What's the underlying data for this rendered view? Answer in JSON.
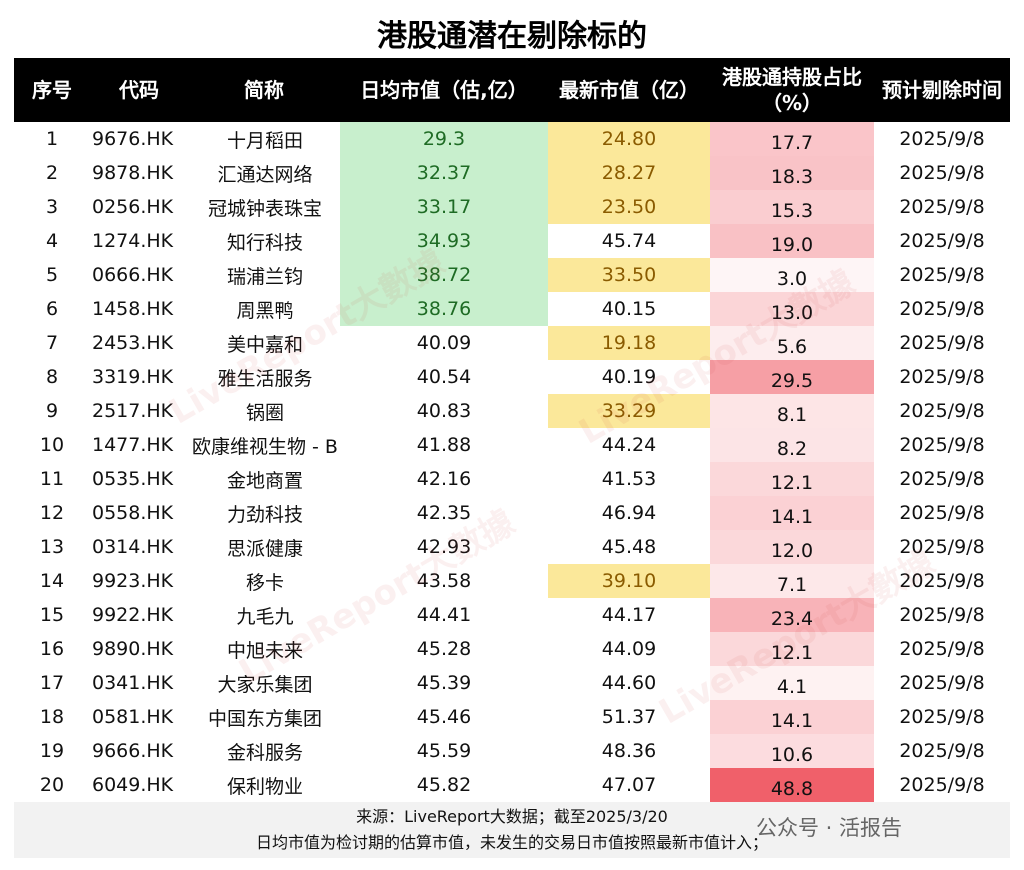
{
  "title": "港股通潜在剔除标的",
  "headers": [
    "序号",
    "代码",
    "简称",
    "日均市值（估,亿）",
    "最新市值（亿）",
    "港股通持股占比（%）",
    "预计剔除时间"
  ],
  "highlight_colors": {
    "green": "#c8efcd",
    "yellow": "#fbe89a",
    "pct_max": "#f0606a"
  },
  "chart_data": {
    "type": "table",
    "rows": [
      {
        "no": "1",
        "code": "9676.HK",
        "name": "十月稻田",
        "avg_cap": "29.3",
        "latest_cap": "24.80",
        "ratio": 17.7,
        "date": "2025/9/8",
        "avg_hl": true,
        "latest_hl": true
      },
      {
        "no": "2",
        "code": "9878.HK",
        "name": "汇通达网络",
        "avg_cap": "32.37",
        "latest_cap": "28.27",
        "ratio": 18.3,
        "date": "2025/9/8",
        "avg_hl": true,
        "latest_hl": true
      },
      {
        "no": "3",
        "code": "0256.HK",
        "name": "冠城钟表珠宝",
        "avg_cap": "33.17",
        "latest_cap": "23.50",
        "ratio": 15.3,
        "date": "2025/9/8",
        "avg_hl": true,
        "latest_hl": true
      },
      {
        "no": "4",
        "code": "1274.HK",
        "name": "知行科技",
        "avg_cap": "34.93",
        "latest_cap": "45.74",
        "ratio": 19.0,
        "date": "2025/9/8",
        "avg_hl": true,
        "latest_hl": false
      },
      {
        "no": "5",
        "code": "0666.HK",
        "name": "瑞浦兰钧",
        "avg_cap": "38.72",
        "latest_cap": "33.50",
        "ratio": 3.0,
        "date": "2025/9/8",
        "avg_hl": true,
        "latest_hl": true
      },
      {
        "no": "6",
        "code": "1458.HK",
        "name": "周黑鸭",
        "avg_cap": "38.76",
        "latest_cap": "40.15",
        "ratio": 13.0,
        "date": "2025/9/8",
        "avg_hl": true,
        "latest_hl": false
      },
      {
        "no": "7",
        "code": "2453.HK",
        "name": "美中嘉和",
        "avg_cap": "40.09",
        "latest_cap": "19.18",
        "ratio": 5.6,
        "date": "2025/9/8",
        "avg_hl": false,
        "latest_hl": true
      },
      {
        "no": "8",
        "code": "3319.HK",
        "name": "雅生活服务",
        "avg_cap": "40.54",
        "latest_cap": "40.19",
        "ratio": 29.5,
        "date": "2025/9/8",
        "avg_hl": false,
        "latest_hl": false
      },
      {
        "no": "9",
        "code": "2517.HK",
        "name": "锅圈",
        "avg_cap": "40.83",
        "latest_cap": "33.29",
        "ratio": 8.1,
        "date": "2025/9/8",
        "avg_hl": false,
        "latest_hl": true
      },
      {
        "no": "10",
        "code": "1477.HK",
        "name": "欧康维视生物 - B",
        "avg_cap": "41.88",
        "latest_cap": "44.24",
        "ratio": 8.2,
        "date": "2025/9/8",
        "avg_hl": false,
        "latest_hl": false
      },
      {
        "no": "11",
        "code": "0535.HK",
        "name": "金地商置",
        "avg_cap": "42.16",
        "latest_cap": "41.53",
        "ratio": 12.1,
        "date": "2025/9/8",
        "avg_hl": false,
        "latest_hl": false
      },
      {
        "no": "12",
        "code": "0558.HK",
        "name": "力劲科技",
        "avg_cap": "42.35",
        "latest_cap": "46.94",
        "ratio": 14.1,
        "date": "2025/9/8",
        "avg_hl": false,
        "latest_hl": false
      },
      {
        "no": "13",
        "code": "0314.HK",
        "name": "思派健康",
        "avg_cap": "42.93",
        "latest_cap": "45.48",
        "ratio": 12.0,
        "date": "2025/9/8",
        "avg_hl": false,
        "latest_hl": false
      },
      {
        "no": "14",
        "code": "9923.HK",
        "name": "移卡",
        "avg_cap": "43.58",
        "latest_cap": "39.10",
        "ratio": 7.1,
        "date": "2025/9/8",
        "avg_hl": false,
        "latest_hl": true
      },
      {
        "no": "15",
        "code": "9922.HK",
        "name": "九毛九",
        "avg_cap": "44.41",
        "latest_cap": "44.17",
        "ratio": 23.4,
        "date": "2025/9/8",
        "avg_hl": false,
        "latest_hl": false
      },
      {
        "no": "16",
        "code": "9890.HK",
        "name": "中旭未来",
        "avg_cap": "45.28",
        "latest_cap": "44.09",
        "ratio": 12.1,
        "date": "2025/9/8",
        "avg_hl": false,
        "latest_hl": false
      },
      {
        "no": "17",
        "code": "0341.HK",
        "name": "大家乐集团",
        "avg_cap": "45.39",
        "latest_cap": "44.60",
        "ratio": 4.1,
        "date": "2025/9/8",
        "avg_hl": false,
        "latest_hl": false
      },
      {
        "no": "18",
        "code": "0581.HK",
        "name": "中国东方集团",
        "avg_cap": "45.46",
        "latest_cap": "51.37",
        "ratio": 14.1,
        "date": "2025/9/8",
        "avg_hl": false,
        "latest_hl": false
      },
      {
        "no": "19",
        "code": "9666.HK",
        "name": "金科服务",
        "avg_cap": "45.59",
        "latest_cap": "48.36",
        "ratio": 10.6,
        "date": "2025/9/8",
        "avg_hl": false,
        "latest_hl": false
      },
      {
        "no": "20",
        "code": "6049.HK",
        "name": "保利物业",
        "avg_cap": "45.82",
        "latest_cap": "47.07",
        "ratio": 48.8,
        "date": "2025/9/8",
        "avg_hl": false,
        "latest_hl": false
      }
    ]
  },
  "footer": {
    "source": "来源：LiveReport大数据；截至2025/3/20",
    "note": "日均市值为检讨期的估算市值，未发生的交易日市值按照最新市值计入；"
  },
  "watermark": {
    "wechat": "公众号 · 活报告",
    "brand": "LiveReport大數據"
  }
}
